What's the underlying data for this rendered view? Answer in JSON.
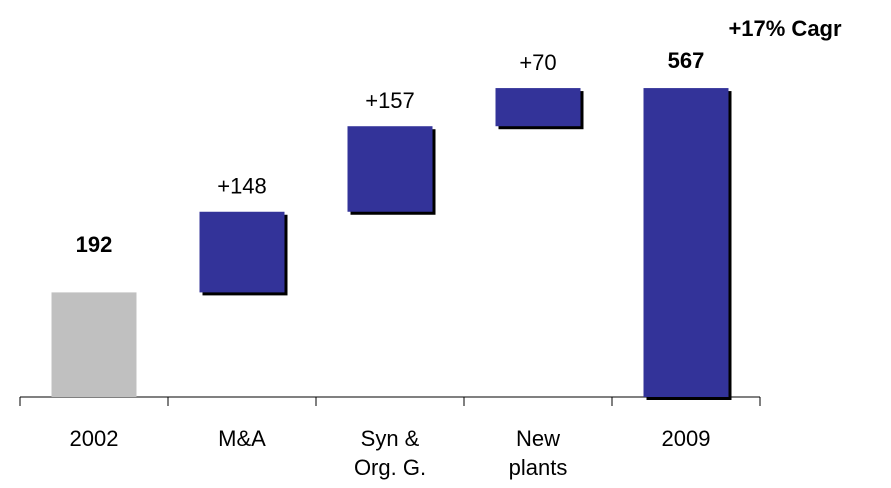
{
  "chart_data": {
    "type": "waterfall",
    "annotation": "+17% Cagr",
    "categories": [
      [
        "2002"
      ],
      [
        "M&A"
      ],
      [
        "Syn &",
        "Org. G."
      ],
      [
        "New",
        "plants"
      ],
      [
        "2009"
      ]
    ],
    "values": [
      192,
      148,
      157,
      70,
      567
    ],
    "value_labels": [
      "192",
      "+148",
      "+157",
      "+70",
      "567"
    ],
    "measure": [
      "total",
      "relative",
      "relative",
      "relative",
      "total"
    ],
    "colors": [
      "#c0c0c0",
      "#333399",
      "#333399",
      "#333399",
      "#333399"
    ],
    "ylim": [
      0,
      580
    ]
  }
}
